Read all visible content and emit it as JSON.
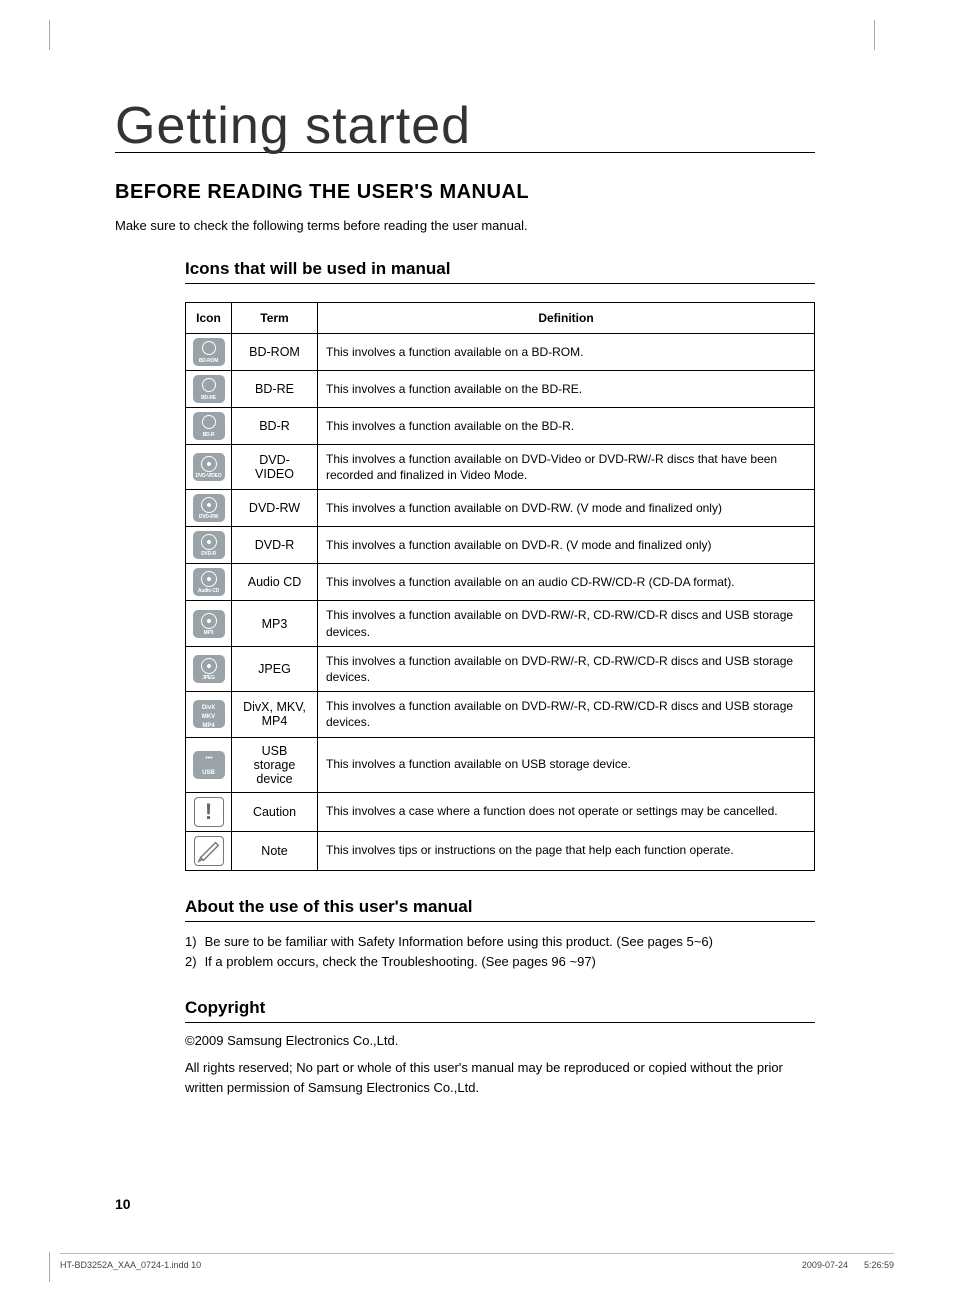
{
  "title": "Getting started",
  "section_title": "BEFORE READING THE USER'S MANUAL",
  "intro": "Make sure to check the following terms before reading the user manual.",
  "icons_heading": "Icons that will be used in manual",
  "table": {
    "headers": {
      "icon": "Icon",
      "term": "Term",
      "definition": "Definition"
    },
    "rows": [
      {
        "icon_label": "BD-ROM",
        "icon_type": "disc",
        "term": "BD-ROM",
        "definition": "This involves a function available on a BD-ROM."
      },
      {
        "icon_label": "BD-RE",
        "icon_type": "disc",
        "term": "BD-RE",
        "definition": "This involves a function available on the BD-RE."
      },
      {
        "icon_label": "BD-R",
        "icon_type": "disc",
        "term": "BD-R",
        "definition": "This involves a function available on the BD-R."
      },
      {
        "icon_label": "DVD-VIDEO",
        "icon_type": "disc-dot",
        "term": "DVD-VIDEO",
        "definition": "This involves a function available on DVD-Video or DVD-RW/-R discs that have been recorded and finalized in Video Mode."
      },
      {
        "icon_label": "DVD-RW",
        "icon_type": "disc-dot",
        "term": "DVD-RW",
        "definition": "This involves a function available on DVD-RW. (V mode and finalized only)"
      },
      {
        "icon_label": "DVD-R",
        "icon_type": "disc-dot",
        "term": "DVD-R",
        "definition": "This involves a function available on DVD-R. (V mode and finalized only)"
      },
      {
        "icon_label": "Audio CD",
        "icon_type": "disc-dot",
        "term": "Audio CD",
        "definition": "This involves a function available on an audio CD-RW/CD-R (CD-DA format)."
      },
      {
        "icon_label": "MP3",
        "icon_type": "disc-dot",
        "term": "MP3",
        "definition": "This involves a function available on DVD-RW/-R, CD-RW/CD-R discs and USB storage devices."
      },
      {
        "icon_label": "JPEG",
        "icon_type": "disc-dot",
        "term": "JPEG",
        "definition": "This involves a function available on DVD-RW/-R, CD-RW/CD-R discs and USB storage devices."
      },
      {
        "icon_label": "DivX\nMKV\nMP4",
        "icon_type": "text",
        "term": "DivX, MKV, MP4",
        "definition": "This involves a function available on DVD-RW/-R, CD-RW/CD-R discs and USB storage devices."
      },
      {
        "icon_label": "USB",
        "icon_type": "usb",
        "term": "USB storage device",
        "definition": "This involves a function available on USB storage device."
      },
      {
        "icon_label": "!",
        "icon_type": "caution",
        "term": "Caution",
        "definition": "This involves a case where a function does not operate or settings may be cancelled."
      },
      {
        "icon_label": "note",
        "icon_type": "note",
        "term": "Note",
        "definition": "This involves tips or instructions on the page that help each function operate."
      }
    ]
  },
  "about_heading": "About the use of this user's manual",
  "about_items": [
    {
      "num": "1)",
      "text": "Be sure to be familiar with Safety Information before using this product. (See pages 5~6)"
    },
    {
      "num": "2)",
      "text": "If a problem occurs, check the Troubleshooting. (See pages 96 ~97)"
    }
  ],
  "copyright_heading": "Copyright",
  "copyright_line1": "©2009 Samsung Electronics Co.,Ltd.",
  "copyright_line2": "All rights reserved; No part or whole of this user's manual may be reproduced or copied without the prior written permission of Samsung Electronics Co.,Ltd.",
  "page_number": "10",
  "footer": {
    "file": "HT-BD3252A_XAA_0724-1.indd   10",
    "date": "2009-07-24",
    "time": "5:26:59"
  },
  "colors": {
    "icon_bg": "#9aa3a8",
    "text": "#000000",
    "border": "#000000"
  }
}
